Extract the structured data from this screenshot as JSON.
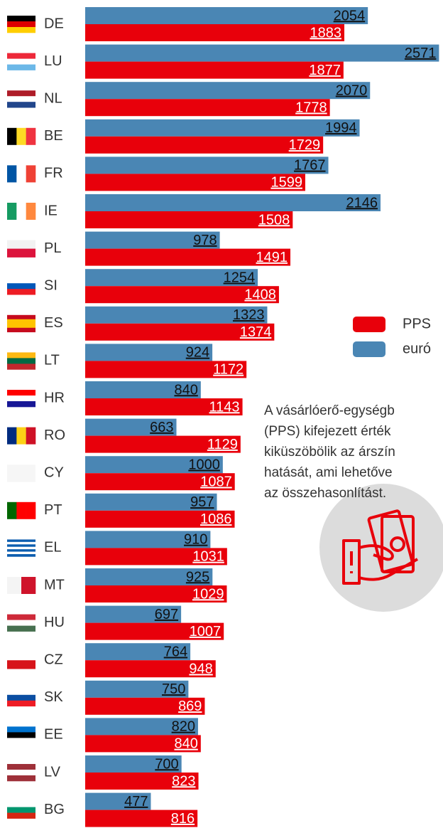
{
  "chart_data": {
    "type": "bar",
    "orientation": "horizontal",
    "categories": [
      "DE",
      "LU",
      "NL",
      "BE",
      "FR",
      "IE",
      "PL",
      "SI",
      "ES",
      "LT",
      "HR",
      "RO",
      "CY",
      "PT",
      "EL",
      "MT",
      "HU",
      "CZ",
      "SK",
      "EE",
      "LV",
      "BG"
    ],
    "series": [
      {
        "name": "euró",
        "color": "#4a86b4",
        "values": [
          2054,
          2571,
          2070,
          1994,
          1767,
          2146,
          978,
          1254,
          1323,
          924,
          840,
          663,
          1000,
          957,
          910,
          925,
          697,
          764,
          750,
          820,
          700,
          477
        ]
      },
      {
        "name": "PPS",
        "color": "#e8000b",
        "values": [
          1883,
          1877,
          1778,
          1729,
          1599,
          1508,
          1491,
          1408,
          1374,
          1172,
          1143,
          1129,
          1087,
          1086,
          1031,
          1029,
          1007,
          948,
          869,
          840,
          823,
          816
        ]
      }
    ],
    "legend_order": [
      1,
      0
    ],
    "xlim": [
      0,
      2600
    ],
    "legend": "right",
    "annotation": [
      "A vásárlóerő-egységb",
      "(PPS) kifejezett érték",
      "kiküszöbölik az árszín",
      "hatását, ami lehetőve",
      "az összehasonlítást."
    ]
  }
}
